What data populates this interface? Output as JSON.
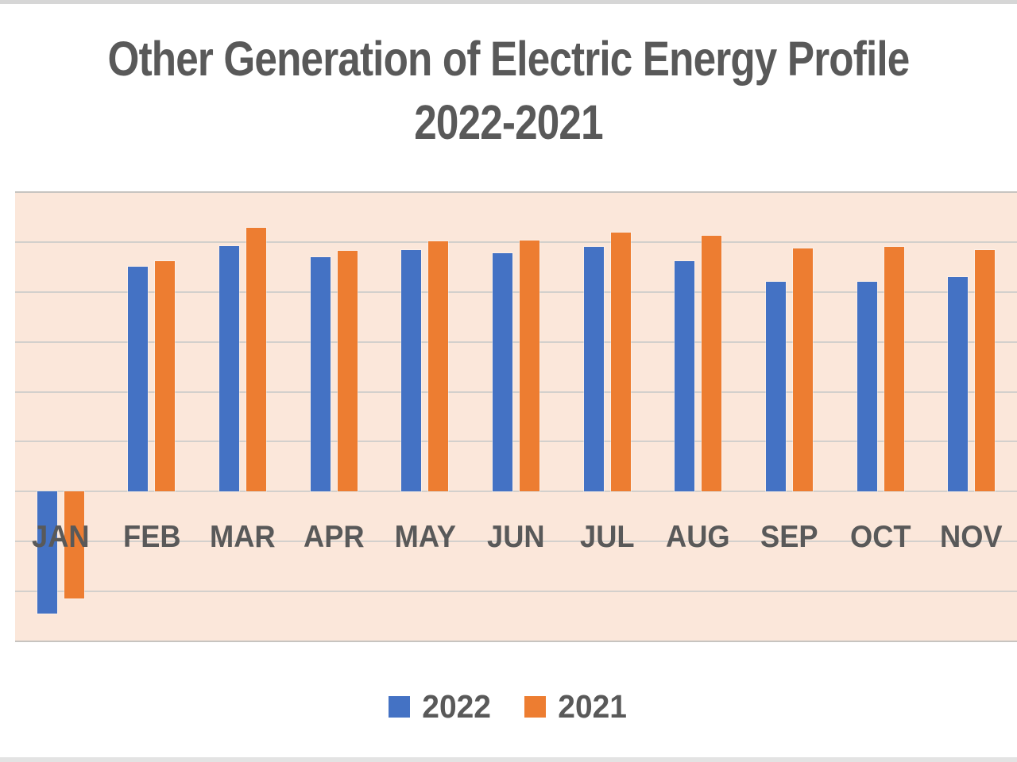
{
  "page": {
    "top_strip_color": "#d6d6d6",
    "bottom_strip_color": "#e3e3e3",
    "background": "#ffffff",
    "text_color": "#595959"
  },
  "title": {
    "line1": "Other Generation of Electric Energy Profile",
    "line2": "2022-2021"
  },
  "legend": {
    "position": "bottom-center"
  },
  "chart_data": {
    "type": "bar",
    "title": "Other Generation of Electric Energy Profile 2022-2021",
    "categories": [
      "JAN",
      "FEB",
      "MAR",
      "APR",
      "MAY",
      "JUN",
      "JUL",
      "AUG",
      "SEP",
      "OCT",
      "NOV"
    ],
    "series": [
      {
        "name": "2022",
        "color": "#4472C4",
        "values": [
          -2.44,
          4.5,
          4.92,
          4.7,
          4.84,
          4.77,
          4.9,
          4.62,
          4.21,
          4.21,
          4.3
        ]
      },
      {
        "name": "2021",
        "color": "#ED7D31",
        "values": [
          -2.14,
          4.62,
          5.29,
          4.82,
          5.01,
          5.03,
          5.19,
          5.13,
          4.87,
          4.91,
          4.84
        ]
      }
    ],
    "xlabel": "",
    "ylabel": "",
    "ylim": [
      -3,
      6
    ],
    "gridline_interval": 1,
    "value_axis_labels_visible": false,
    "units_note": "no numeric axis labels shown; values estimated in gridline units",
    "plot_bg": "#FBE7DA",
    "gridline_color": "#d3d0cc",
    "plot_border_color": "#c7c4c0",
    "legend_position": "bottom",
    "label_color": "#595959"
  }
}
